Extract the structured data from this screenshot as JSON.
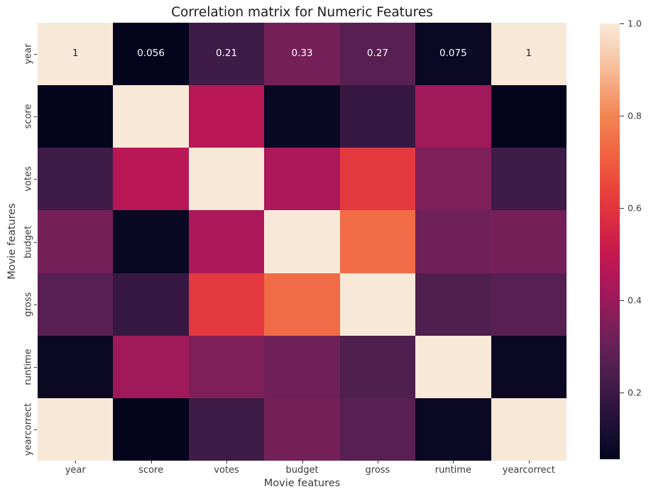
{
  "chart_data": {
    "type": "heatmap",
    "title": "Correlation matrix for Numeric Features",
    "xlabel": "Movie features",
    "ylabel": "Movie features",
    "categories": [
      "year",
      "score",
      "votes",
      "budget",
      "gross",
      "runtime",
      "yearcorrect"
    ],
    "matrix": [
      [
        1,
        0.056,
        0.21,
        0.33,
        0.27,
        0.075,
        1
      ],
      [
        0.056,
        1,
        0.47,
        0.072,
        0.19,
        0.41,
        0.056
      ],
      [
        0.21,
        0.47,
        1,
        0.44,
        0.61,
        0.35,
        0.21
      ],
      [
        0.33,
        0.072,
        0.44,
        1,
        0.74,
        0.32,
        0.33
      ],
      [
        0.27,
        0.19,
        0.61,
        0.74,
        1,
        0.25,
        0.27
      ],
      [
        0.075,
        0.41,
        0.35,
        0.32,
        0.25,
        1,
        0.075
      ],
      [
        1,
        0.056,
        0.21,
        0.33,
        0.27,
        0.075,
        1
      ]
    ],
    "annotations": {
      "row_index": 0,
      "labels": [
        "1",
        "0.056",
        "0.21",
        "0.33",
        "0.27",
        "0.075",
        "1"
      ]
    },
    "vmin": 0.056,
    "vmax": 1.0,
    "grid": false,
    "legend_position": "right-colorbar",
    "colorbar_ticks": [
      {
        "value": 1.0,
        "label": "1.0"
      },
      {
        "value": 0.8,
        "label": "0.8"
      },
      {
        "value": 0.6,
        "label": "0.6"
      },
      {
        "value": 0.4,
        "label": "0.4"
      },
      {
        "value": 0.2,
        "label": "0.2"
      }
    ],
    "colormap": {
      "name": "rocket",
      "anchors": [
        {
          "v": 0.056,
          "hex": "#04051C"
        },
        {
          "v": 0.1,
          "hex": "#130D2D"
        },
        {
          "v": 0.15,
          "hex": "#261239"
        },
        {
          "v": 0.2,
          "hex": "#3B1A45"
        },
        {
          "v": 0.25,
          "hex": "#4F1F4E"
        },
        {
          "v": 0.3,
          "hex": "#662157"
        },
        {
          "v": 0.35,
          "hex": "#7F1F5A"
        },
        {
          "v": 0.4,
          "hex": "#9A1A5B"
        },
        {
          "v": 0.45,
          "hex": "#B2175A"
        },
        {
          "v": 0.5,
          "hex": "#C4184E"
        },
        {
          "v": 0.55,
          "hex": "#D52546"
        },
        {
          "v": 0.6,
          "hex": "#E3353F"
        },
        {
          "v": 0.65,
          "hex": "#EA473C"
        },
        {
          "v": 0.7,
          "hex": "#EF5B40"
        },
        {
          "v": 0.75,
          "hex": "#F17048"
        },
        {
          "v": 0.8,
          "hex": "#F28552"
        },
        {
          "v": 0.85,
          "hex": "#F49F74"
        },
        {
          "v": 0.9,
          "hex": "#F6BC97"
        },
        {
          "v": 0.95,
          "hex": "#F7D4BB"
        },
        {
          "v": 1.0,
          "hex": "#F8E8D8"
        }
      ]
    },
    "annotation_text_colors": {
      "on_light_cell": "#262626",
      "on_dark_cell": "#FFFFFF"
    }
  }
}
